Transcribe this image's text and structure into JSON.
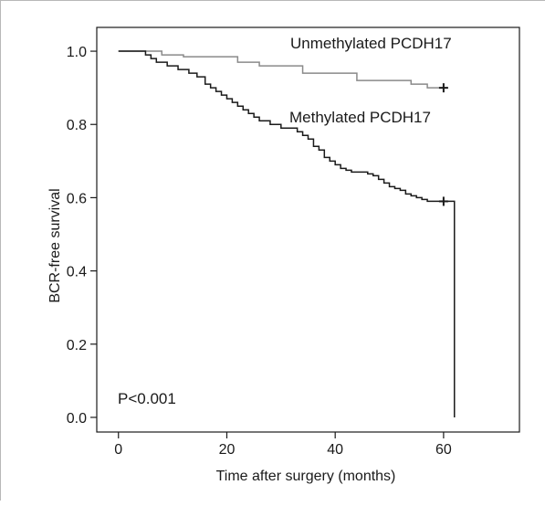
{
  "chart_data": {
    "type": "line",
    "title": "",
    "xlabel": "Time after surgery (months)",
    "ylabel": "BCR-free survival",
    "xlim": [
      -4,
      74
    ],
    "ylim": [
      -0.04,
      1.065
    ],
    "x_ticks": [
      0,
      20,
      40,
      60
    ],
    "y_ticks": [
      0.0,
      0.2,
      0.4,
      0.6,
      0.8,
      1.0
    ],
    "y_tick_labels": [
      "0.0",
      "0.2",
      "0.4",
      "0.6",
      "0.8",
      "1.0"
    ],
    "grid": false,
    "annotation": "P<0.001",
    "series": [
      {
        "name": "Unmethylated PCDH17",
        "color": "#8a8a8a",
        "step": true,
        "x": [
          0,
          8,
          12,
          22,
          26,
          34,
          44,
          54,
          57,
          60
        ],
        "y": [
          1.0,
          0.99,
          0.985,
          0.97,
          0.96,
          0.94,
          0.92,
          0.91,
          0.9,
          0.9
        ],
        "censored": [
          {
            "x": 60,
            "y": 0.9
          }
        ]
      },
      {
        "name": "Methylated PCDH17",
        "color": "#1a1a1a",
        "step": true,
        "x": [
          0,
          5,
          6,
          7,
          9,
          11,
          13,
          14.5,
          16,
          17,
          18,
          19,
          20,
          21,
          22,
          23,
          24,
          25,
          26,
          28,
          30,
          33,
          34,
          35,
          36,
          37,
          38,
          39,
          40,
          41,
          42,
          43,
          46,
          47,
          48,
          49,
          50,
          51,
          52,
          53,
          54,
          55,
          56,
          57,
          58,
          60,
          62
        ],
        "y": [
          1.0,
          0.99,
          0.98,
          0.97,
          0.96,
          0.95,
          0.94,
          0.93,
          0.91,
          0.9,
          0.89,
          0.88,
          0.87,
          0.86,
          0.85,
          0.84,
          0.83,
          0.82,
          0.81,
          0.8,
          0.79,
          0.78,
          0.77,
          0.76,
          0.74,
          0.73,
          0.71,
          0.7,
          0.69,
          0.68,
          0.675,
          0.67,
          0.665,
          0.66,
          0.65,
          0.64,
          0.63,
          0.625,
          0.62,
          0.61,
          0.605,
          0.6,
          0.595,
          0.59,
          0.59,
          0.59,
          0.0
        ],
        "censored": [
          {
            "x": 60,
            "y": 0.59
          }
        ]
      }
    ]
  }
}
